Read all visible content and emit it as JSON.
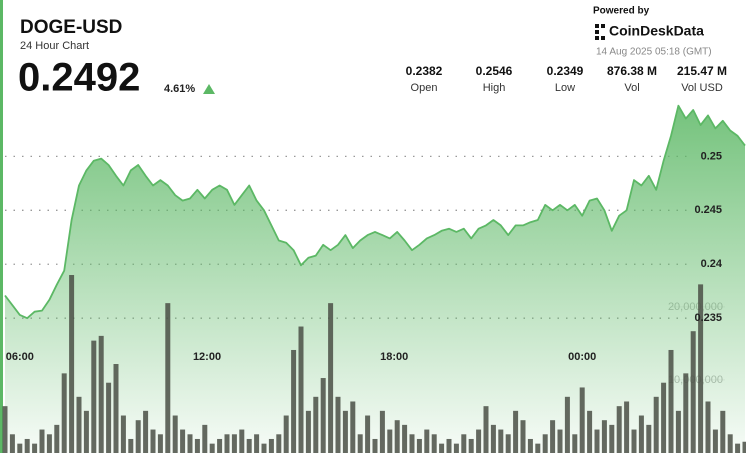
{
  "header": {
    "symbol": "DOGE-USD",
    "subtitle": "24 Hour Chart",
    "price": "0.2492",
    "change": "4.61%",
    "stats": [
      {
        "value": "0.2382",
        "label": "Open"
      },
      {
        "value": "0.2546",
        "label": "High"
      },
      {
        "value": "0.2349",
        "label": "Low"
      },
      {
        "value": "876.38 M",
        "label": "Vol"
      },
      {
        "value": "215.47 M",
        "label": "Vol USD"
      }
    ],
    "powered_by": "Powered by",
    "brand": "CoinDeskData",
    "timestamp": "14 Aug 2025 05:18 (GMT)"
  },
  "chart_data": {
    "type": "area",
    "categories": [
      null,
      null,
      null,
      null,
      null,
      null,
      null,
      null,
      null,
      null,
      null,
      null,
      null,
      null,
      null,
      null,
      null,
      null,
      null,
      null,
      null,
      null,
      null,
      null,
      null,
      null,
      null,
      null,
      null,
      null,
      null,
      null,
      null,
      null,
      null,
      null,
      null,
      null,
      null,
      null,
      null,
      null,
      null,
      null,
      null,
      null,
      null,
      null,
      null,
      null,
      null,
      null,
      null,
      null,
      null,
      null,
      null,
      null,
      null,
      null,
      null,
      null,
      null,
      null,
      null,
      null,
      null,
      null,
      null,
      null,
      null,
      null,
      null,
      null,
      null,
      null,
      null,
      null,
      null,
      null,
      null,
      null,
      null,
      null,
      null,
      null,
      null,
      null,
      null,
      null,
      null,
      null,
      null,
      null,
      null,
      null,
      null,
      null,
      null,
      null,
      null
    ],
    "series": [
      {
        "color": "#5cb865",
        "values": [
          0.2371,
          0.2362,
          0.2353,
          0.235,
          0.2356,
          0.2357,
          0.2367,
          0.2381,
          0.2394,
          0.2441,
          0.2473,
          0.2487,
          0.2496,
          0.2498,
          0.2492,
          0.2482,
          0.2473,
          0.2487,
          0.2492,
          0.2482,
          0.2473,
          0.2478,
          0.2473,
          0.2464,
          0.2459,
          0.2461,
          0.2469,
          0.2461,
          0.2469,
          0.2473,
          0.2469,
          0.2455,
          0.2464,
          0.2473,
          0.2459,
          0.245,
          0.2436,
          0.2422,
          0.242,
          0.2413,
          0.2399,
          0.2406,
          0.2408,
          0.2418,
          0.2413,
          0.2418,
          0.2427,
          0.2415,
          0.2422,
          0.2427,
          0.243,
          0.2427,
          0.2424,
          0.243,
          0.2422,
          0.2413,
          0.2418,
          0.2424,
          0.2427,
          0.2431,
          0.2433,
          0.243,
          0.2433,
          0.2424,
          0.2433,
          0.2436,
          0.2441,
          0.2436,
          0.2427,
          0.2436,
          0.2436,
          0.2439,
          0.2441,
          0.2455,
          0.245,
          0.2455,
          0.245,
          0.2455,
          0.2445,
          0.2459,
          0.2461,
          0.245,
          0.2431,
          0.2445,
          0.245,
          0.2478,
          0.2473,
          0.2482,
          0.2469,
          0.2496,
          0.2519,
          0.2547,
          0.2535,
          0.2543,
          0.2529,
          0.2538,
          0.2526,
          0.2533,
          0.2524,
          0.2519,
          0.251
        ]
      },
      {
        "type": "bar",
        "axis": "y2",
        "color": "#4a4f45",
        "values": [
          6410000,
          2560000,
          1280000,
          1920000,
          1280000,
          3210000,
          2560000,
          3850000,
          10900000,
          24360000,
          7690000,
          5770000,
          15380000,
          16030000,
          9620000,
          12180000,
          5130000,
          1920000,
          4490000,
          5770000,
          3210000,
          2560000,
          20510000,
          5130000,
          3210000,
          2560000,
          1920000,
          3850000,
          1280000,
          1920000,
          2560000,
          2560000,
          3210000,
          1920000,
          2560000,
          1280000,
          1920000,
          2560000,
          5130000,
          14100000,
          17310000,
          5770000,
          7690000,
          10260000,
          20510000,
          7690000,
          5770000,
          7050000,
          2560000,
          5130000,
          1920000,
          5770000,
          3210000,
          4490000,
          3850000,
          2560000,
          1920000,
          3210000,
          2560000,
          1280000,
          1920000,
          1280000,
          2560000,
          1920000,
          3210000,
          6410000,
          3850000,
          3210000,
          2560000,
          5770000,
          4490000,
          1920000,
          1280000,
          2560000,
          4490000,
          3210000,
          7690000,
          2560000,
          8970000,
          5770000,
          3210000,
          4490000,
          3850000,
          6410000,
          7050000,
          3210000,
          5130000,
          3850000,
          7690000,
          9620000,
          14100000,
          5770000,
          10900000,
          16670000,
          23080000,
          7050000,
          3210000,
          5770000,
          2560000,
          1280000,
          1540000
        ]
      }
    ],
    "xlim": [
      0,
      100
    ],
    "xticks": [
      {
        "value": 2,
        "label": "06:00"
      },
      {
        "value": 27.3,
        "label": "12:00"
      },
      {
        "value": 52.6,
        "label": "18:00"
      },
      {
        "value": 78,
        "label": "00:00"
      }
    ],
    "ylim": [
      0.2225,
      0.2645
    ],
    "yticks": [
      0.25,
      0.245,
      0.24,
      0.235
    ],
    "y2lim": [
      0,
      62000000
    ],
    "y2ticks": [
      {
        "value": 20000000,
        "label": "20,000,000"
      },
      {
        "value": 10000000,
        "label": "10,000,000"
      }
    ],
    "grid": true
  }
}
